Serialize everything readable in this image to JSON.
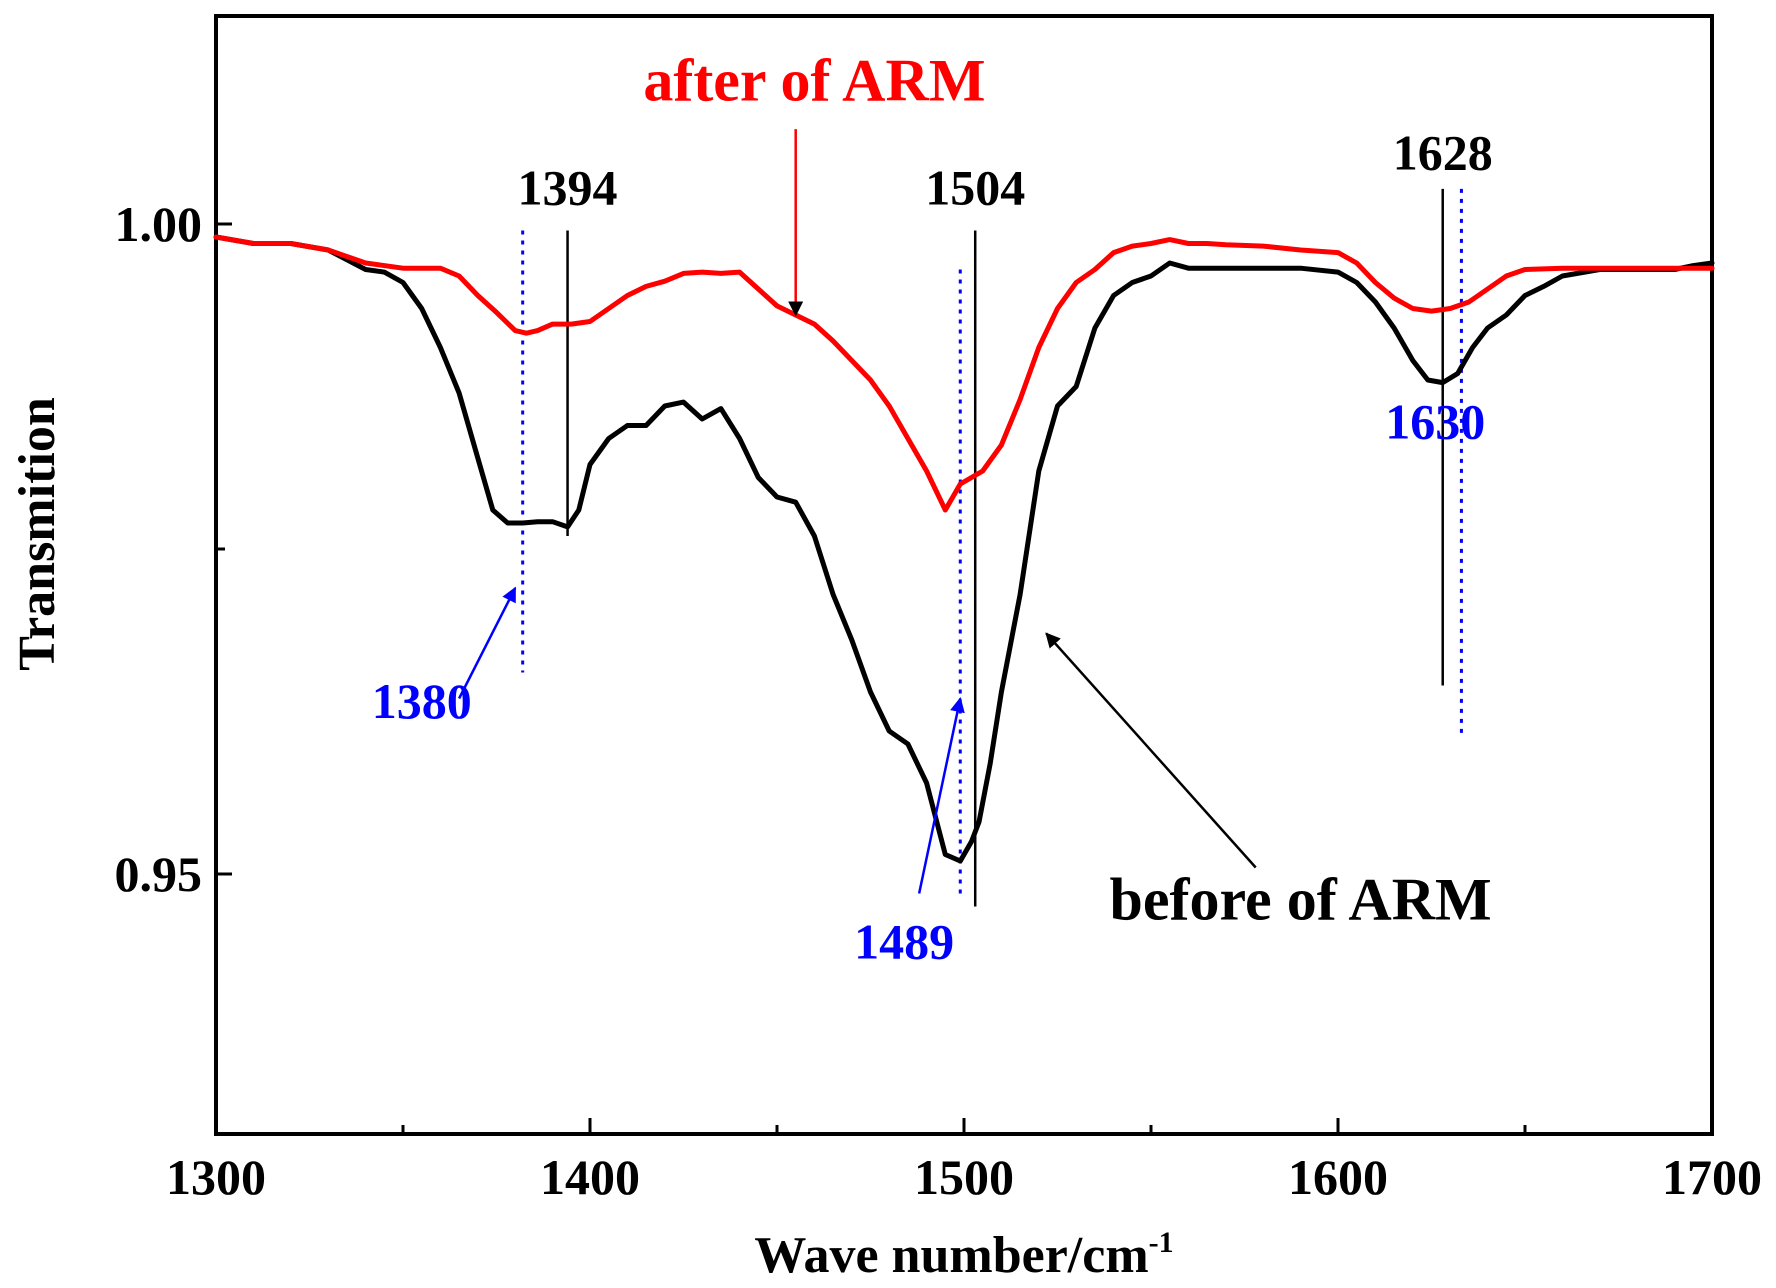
{
  "chart_data": {
    "type": "line",
    "xlabel": "Wave number/cm",
    "xlabel_superscript": "-1",
    "ylabel": "Transmition",
    "xlim": [
      1300,
      1700
    ],
    "ylim": [
      0.93,
      1.016
    ],
    "xticks": [
      1300,
      1400,
      1500,
      1600,
      1700
    ],
    "xtick_labels": [
      "1300",
      "1400",
      "1500",
      "1600",
      "1700"
    ],
    "xminor": [
      1350,
      1450,
      1550,
      1650
    ],
    "yticks": [
      1.0,
      0.95
    ],
    "ytick_labels": [
      "1.00",
      "0.95"
    ],
    "yminor": [
      0.975
    ],
    "series": [
      {
        "name": "before of ARM",
        "color": "#000000",
        "x": [
          1300,
          1310,
          1320,
          1330,
          1340,
          1345,
          1350,
          1355,
          1360,
          1365,
          1370,
          1374,
          1378,
          1382,
          1386,
          1390,
          1394,
          1397,
          1400,
          1405,
          1410,
          1415,
          1420,
          1425,
          1430,
          1435,
          1440,
          1445,
          1450,
          1455,
          1460,
          1465,
          1470,
          1475,
          1480,
          1485,
          1490,
          1495,
          1499,
          1502,
          1504,
          1507,
          1510,
          1515,
          1520,
          1525,
          1530,
          1535,
          1540,
          1545,
          1550,
          1555,
          1560,
          1565,
          1570,
          1580,
          1590,
          1600,
          1605,
          1610,
          1615,
          1620,
          1624,
          1628,
          1632,
          1636,
          1640,
          1645,
          1650,
          1655,
          1660,
          1670,
          1680,
          1690,
          1695,
          1700
        ],
        "y": [
          0.999,
          0.9985,
          0.9985,
          0.998,
          0.9965,
          0.9963,
          0.9955,
          0.9935,
          0.9905,
          0.987,
          0.982,
          0.978,
          0.977,
          0.977,
          0.9771,
          0.9771,
          0.9767,
          0.978,
          0.9815,
          0.9835,
          0.9845,
          0.9845,
          0.986,
          0.9863,
          0.985,
          0.9858,
          0.9835,
          0.9805,
          0.979,
          0.9786,
          0.976,
          0.9715,
          0.968,
          0.964,
          0.961,
          0.96,
          0.957,
          0.9515,
          0.951,
          0.9525,
          0.954,
          0.9585,
          0.964,
          0.9715,
          0.981,
          0.986,
          0.9875,
          0.992,
          0.9945,
          0.9955,
          0.996,
          0.997,
          0.9966,
          0.9966,
          0.9966,
          0.9966,
          0.9966,
          0.9963,
          0.9955,
          0.994,
          0.992,
          0.9895,
          0.988,
          0.9878,
          0.9885,
          0.9905,
          0.992,
          0.993,
          0.9945,
          0.9952,
          0.996,
          0.9965,
          0.9965,
          0.9965,
          0.9968,
          0.997
        ]
      },
      {
        "name": "after of ARM",
        "color": "#ff0000",
        "x": [
          1300,
          1310,
          1320,
          1330,
          1340,
          1350,
          1360,
          1365,
          1370,
          1375,
          1380,
          1383,
          1386,
          1390,
          1395,
          1400,
          1405,
          1410,
          1415,
          1420,
          1425,
          1430,
          1435,
          1440,
          1445,
          1450,
          1455,
          1460,
          1465,
          1470,
          1475,
          1480,
          1485,
          1490,
          1495,
          1499,
          1502,
          1505,
          1510,
          1515,
          1520,
          1525,
          1530,
          1535,
          1540,
          1545,
          1550,
          1555,
          1560,
          1565,
          1570,
          1580,
          1590,
          1600,
          1605,
          1610,
          1615,
          1620,
          1625,
          1630,
          1635,
          1640,
          1645,
          1650,
          1660,
          1670,
          1680,
          1690,
          1695,
          1700
        ],
        "y": [
          0.999,
          0.9985,
          0.9985,
          0.998,
          0.997,
          0.9966,
          0.9966,
          0.996,
          0.9945,
          0.9932,
          0.9918,
          0.9916,
          0.9918,
          0.9923,
          0.9923,
          0.9925,
          0.9935,
          0.9945,
          0.9952,
          0.9956,
          0.9962,
          0.9963,
          0.9962,
          0.9963,
          0.995,
          0.9937,
          0.993,
          0.9923,
          0.991,
          0.9895,
          0.988,
          0.986,
          0.9835,
          0.981,
          0.978,
          0.98,
          0.9805,
          0.981,
          0.983,
          0.9865,
          0.9905,
          0.9935,
          0.9955,
          0.9965,
          0.9978,
          0.9983,
          0.9985,
          0.9988,
          0.9985,
          0.9985,
          0.9984,
          0.9983,
          0.998,
          0.9978,
          0.997,
          0.9955,
          0.9943,
          0.9935,
          0.9933,
          0.9935,
          0.994,
          0.995,
          0.996,
          0.9965,
          0.9966,
          0.9966,
          0.9966,
          0.9966,
          0.9966,
          0.9966
        ]
      }
    ],
    "peaks": [
      {
        "label": "1394",
        "x": 1394,
        "color": "#000000",
        "style": "solid",
        "y_top": 0.9995,
        "y_bottom": 0.976,
        "label_x": 1394,
        "label_y": 1.0015
      },
      {
        "label": "1504",
        "x": 1503,
        "color": "#000000",
        "style": "solid",
        "y_top": 0.9995,
        "y_bottom": 0.9475,
        "label_x": 1503,
        "label_y": 1.0015
      },
      {
        "label": "1628",
        "x": 1628,
        "color": "#000000",
        "style": "solid",
        "y_top": 1.0027,
        "y_bottom": 0.9645,
        "label_x": 1628,
        "label_y": 1.0042
      },
      {
        "label": "1380",
        "x": 1382,
        "color": "#0000ff",
        "style": "dotted",
        "y_top": 0.9995,
        "y_bottom": 0.9655,
        "label_x": 1355,
        "label_y": 0.962
      },
      {
        "label": "1489",
        "x": 1499,
        "color": "#0000ff",
        "style": "dotted",
        "y_top": 0.9965,
        "y_bottom": 0.9485,
        "label_x": 1484,
        "label_y": 0.9435
      },
      {
        "label": "1630",
        "x": 1633,
        "color": "#0000ff",
        "style": "dotted",
        "y_top": 1.0027,
        "y_bottom": 0.9605,
        "label_x": 1626,
        "label_y": 0.9835
      }
    ],
    "annotations": [
      {
        "text": "after of ARM",
        "color": "#ff0000",
        "x": 1460,
        "y": 1.0095,
        "arrow_from": [
          1455,
          1.0073
        ],
        "arrow_to": [
          1455,
          0.993
        ]
      },
      {
        "text": "before of ARM",
        "color": "#000000",
        "x": 1590,
        "y": 0.9465,
        "arrow_from": [
          1578,
          0.9505
        ],
        "arrow_to": [
          1522,
          0.9685
        ]
      },
      {
        "text": "",
        "color": "#0000ff",
        "arrow_from": [
          1365,
          0.9635
        ],
        "arrow_to": [
          1380,
          0.972
        ]
      },
      {
        "text": "",
        "color": "#0000ff",
        "arrow_from": [
          1488,
          0.9485
        ],
        "arrow_to": [
          1499,
          0.9635
        ]
      }
    ]
  }
}
